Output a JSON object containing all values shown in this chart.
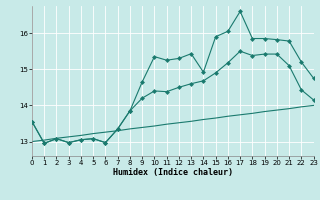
{
  "xlabel": "Humidex (Indice chaleur)",
  "bg_color": "#c8eae8",
  "line_color": "#1a7a6e",
  "grid_color": "#ffffff",
  "xlim": [
    0,
    23
  ],
  "ylim": [
    12.6,
    16.75
  ],
  "yticks": [
    13,
    14,
    15,
    16
  ],
  "xticks": [
    0,
    1,
    2,
    3,
    4,
    5,
    6,
    7,
    8,
    9,
    10,
    11,
    12,
    13,
    14,
    15,
    16,
    17,
    18,
    19,
    20,
    21,
    22,
    23
  ],
  "line_top_x": [
    0,
    1,
    2,
    3,
    4,
    5,
    6,
    7,
    8,
    9,
    10,
    11,
    12,
    13,
    14,
    15,
    16,
    17,
    18,
    19,
    20,
    21,
    22,
    23
  ],
  "line_top_y": [
    13.55,
    12.95,
    13.08,
    12.97,
    13.05,
    13.08,
    12.97,
    13.35,
    13.85,
    14.65,
    15.35,
    15.25,
    15.3,
    15.43,
    14.92,
    15.9,
    16.05,
    16.6,
    15.85,
    15.85,
    15.82,
    15.78,
    15.2,
    14.75
  ],
  "line_mid_x": [
    0,
    1,
    2,
    3,
    4,
    5,
    6,
    7,
    8,
    9,
    10,
    11,
    12,
    13,
    14,
    15,
    16,
    17,
    18,
    19,
    20,
    21,
    22,
    23
  ],
  "line_mid_y": [
    13.55,
    12.95,
    13.08,
    12.97,
    13.05,
    13.08,
    12.97,
    13.35,
    13.85,
    14.2,
    14.4,
    14.38,
    14.5,
    14.6,
    14.68,
    14.9,
    15.18,
    15.5,
    15.38,
    15.42,
    15.42,
    15.1,
    14.43,
    14.15
  ],
  "line_bot_x": [
    0,
    1,
    2,
    3,
    4,
    5,
    6,
    7,
    8,
    9,
    10,
    11,
    12,
    13,
    14,
    15,
    16,
    17,
    18,
    19,
    20,
    21,
    22,
    23
  ],
  "line_bot_y": [
    13.0,
    13.04,
    13.09,
    13.13,
    13.17,
    13.22,
    13.26,
    13.3,
    13.35,
    13.39,
    13.43,
    13.48,
    13.52,
    13.56,
    13.61,
    13.65,
    13.7,
    13.74,
    13.78,
    13.83,
    13.87,
    13.91,
    13.96,
    14.0
  ]
}
